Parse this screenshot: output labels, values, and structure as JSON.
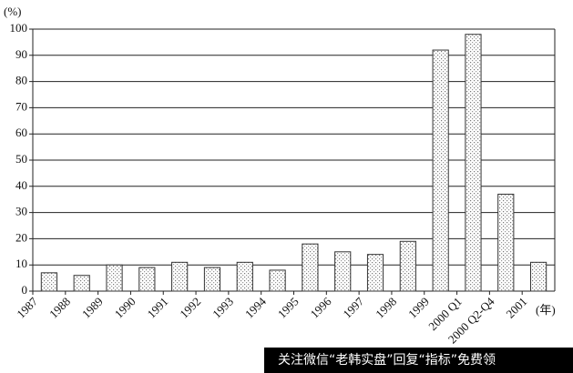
{
  "chart_data": {
    "type": "bar",
    "y_label": "(%)",
    "x_label": "(年)",
    "categories": [
      "1987",
      "1988",
      "1989",
      "1990",
      "1991",
      "1992",
      "1993",
      "1994",
      "1995",
      "1996",
      "1997",
      "1998",
      "1999",
      "2000 Q1",
      "2000 Q2-Q4",
      "2001"
    ],
    "values": [
      7,
      6,
      10,
      9,
      11,
      9,
      11,
      8,
      18,
      15,
      14,
      19,
      92,
      98,
      37,
      11
    ],
    "color": "#d4d4d4",
    "ylim": [
      0,
      100
    ],
    "yticks": [
      0,
      10,
      20,
      30,
      40,
      50,
      60,
      70,
      80,
      90,
      100
    ],
    "grid": true,
    "annotation": "关注微信“老韩实盘”回复“指标”免费领"
  }
}
